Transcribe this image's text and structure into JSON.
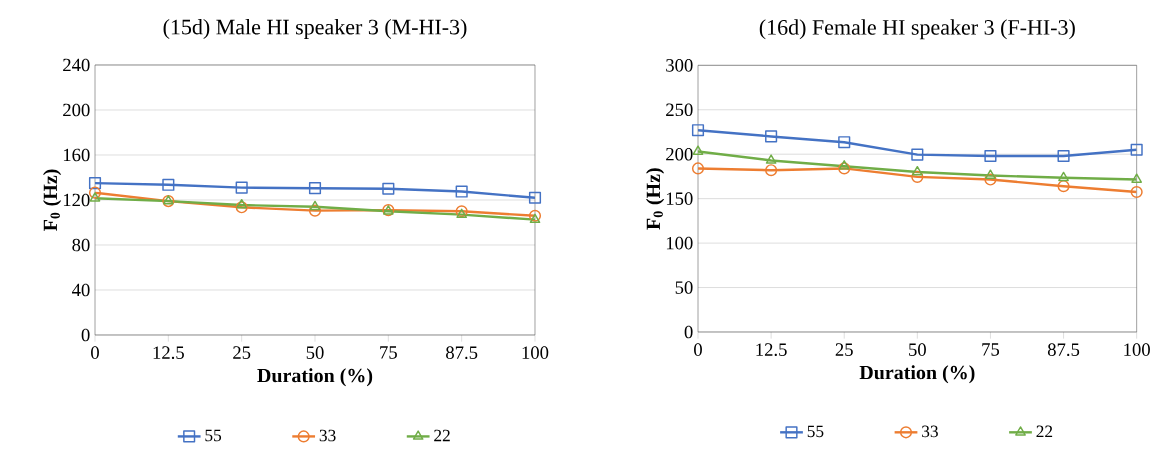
{
  "chart_data": [
    {
      "type": "line",
      "title": "(15d) Male HI speaker 3 (M-HI-3)",
      "xlabel": "Duration (%)",
      "ylabel": "F$_{0}$ (Hz)",
      "categories": [
        "0",
        "12.5",
        "25",
        "50",
        "75",
        "87.5",
        "100"
      ],
      "series": [
        {
          "name": "55",
          "color": "#4472c4",
          "marker": "square",
          "values": [
            135,
            133.5,
            131,
            130.5,
            130,
            127.5,
            122
          ]
        },
        {
          "name": "33",
          "color": "#ed7d31",
          "marker": "circle",
          "values": [
            126.5,
            119,
            113.5,
            110.5,
            111,
            110,
            106
          ]
        },
        {
          "name": "22",
          "color": "#70ad47",
          "marker": "triangle",
          "values": [
            121.5,
            119,
            115.5,
            114,
            110,
            107,
            102.5
          ]
        }
      ],
      "ylim": [
        0,
        240
      ],
      "yticks": [
        0,
        40,
        80,
        120,
        160,
        200,
        240
      ],
      "grid": "y",
      "legend": "bottom"
    },
    {
      "type": "line",
      "title": "(16d) Female HI speaker 3 (F-HI-3)",
      "xlabel": "Duration (%)",
      "ylabel": "F$_{0}$ (Hz)",
      "categories": [
        "0",
        "12.5",
        "25",
        "50",
        "75",
        "87.5",
        "100"
      ],
      "series": [
        {
          "name": "55",
          "color": "#4472c4",
          "marker": "square",
          "values": [
            227,
            220,
            213.5,
            199.5,
            198,
            198,
            205
          ]
        },
        {
          "name": "33",
          "color": "#ed7d31",
          "marker": "circle",
          "values": [
            184,
            182,
            184,
            174.5,
            171.5,
            164,
            157.5
          ]
        },
        {
          "name": "22",
          "color": "#70ad47",
          "marker": "triangle",
          "values": [
            203,
            193,
            186.5,
            180,
            176,
            173.5,
            171.5
          ]
        }
      ],
      "ylim": [
        0,
        300
      ],
      "yticks": [
        0,
        50,
        100,
        150,
        200,
        250,
        300
      ],
      "grid": "y",
      "legend": "bottom"
    }
  ]
}
